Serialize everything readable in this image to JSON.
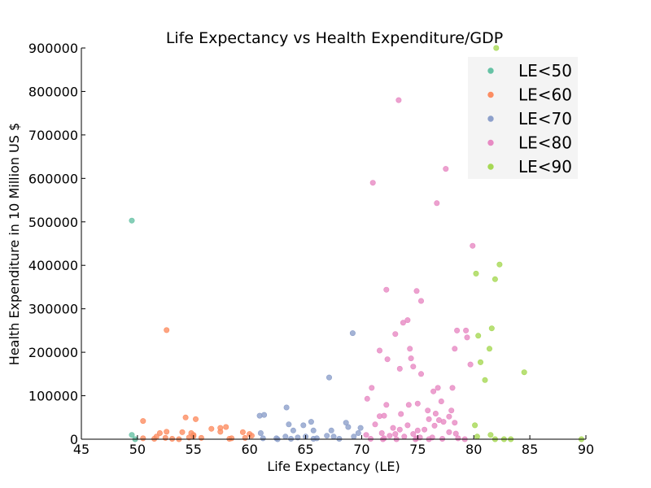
{
  "chart_data": {
    "type": "scatter",
    "title": "Life Expectancy vs Health Expenditure/GDP",
    "xlabel": "Life Expectancy (LE)",
    "ylabel": "Health Expenditure in 10 Million US $",
    "xlim": [
      45,
      90
    ],
    "ylim": [
      0,
      900000
    ],
    "xticks": [
      "45",
      "50",
      "55",
      "60",
      "65",
      "70",
      "75",
      "80",
      "85",
      "90"
    ],
    "yticks": [
      "0",
      "100000",
      "200000",
      "300000",
      "400000",
      "500000",
      "600000",
      "700000",
      "800000",
      "900000"
    ],
    "grid": false,
    "legend_position": "top-right",
    "series": [
      {
        "name": "LE<50",
        "color": "#66c2a5",
        "points": [
          [
            49.5,
            503000
          ],
          [
            49.5,
            10000
          ],
          [
            49.8,
            0
          ]
        ]
      },
      {
        "name": "LE<60",
        "color": "#fc8d62",
        "points": [
          [
            52.6,
            251000
          ],
          [
            50.5,
            42000
          ],
          [
            54.3,
            50000
          ],
          [
            55.2,
            46000
          ],
          [
            56.6,
            24000
          ],
          [
            57.4,
            26000
          ],
          [
            57.9,
            28000
          ],
          [
            59.4,
            16000
          ],
          [
            60.0,
            12000
          ],
          [
            52.0,
            14000
          ],
          [
            52.6,
            17000
          ],
          [
            54.0,
            16000
          ],
          [
            54.8,
            14000
          ],
          [
            55.0,
            10000
          ],
          [
            51.7,
            6000
          ],
          [
            52.5,
            3000
          ],
          [
            53.1,
            1000
          ],
          [
            54.6,
            4000
          ],
          [
            55.7,
            3000
          ],
          [
            57.4,
            17000
          ],
          [
            58.4,
            2000
          ],
          [
            58.2,
            1000
          ],
          [
            59.6,
            3000
          ],
          [
            60.2,
            8000
          ],
          [
            50.5,
            2000
          ],
          [
            51.5,
            1000
          ],
          [
            55.0,
            7000
          ],
          [
            53.7,
            0
          ]
        ]
      },
      {
        "name": "LE<70",
        "color": "#8da0cb",
        "points": [
          [
            69.2,
            244000
          ],
          [
            67.1,
            142000
          ],
          [
            63.3,
            73000
          ],
          [
            60.9,
            54000
          ],
          [
            61.3,
            56000
          ],
          [
            65.5,
            40000
          ],
          [
            68.6,
            38000
          ],
          [
            63.5,
            34000
          ],
          [
            64.8,
            32000
          ],
          [
            69.9,
            26000
          ],
          [
            68.8,
            28000
          ],
          [
            67.3,
            20000
          ],
          [
            63.9,
            20000
          ],
          [
            65.7,
            20000
          ],
          [
            61.0,
            14000
          ],
          [
            66.9,
            8000
          ],
          [
            67.5,
            6000
          ],
          [
            63.2,
            6000
          ],
          [
            64.3,
            4000
          ],
          [
            62.4,
            2000
          ],
          [
            65.0,
            6000
          ],
          [
            66.0,
            2000
          ],
          [
            69.3,
            6000
          ],
          [
            61.2,
            2000
          ],
          [
            63.7,
            1000
          ],
          [
            68.0,
            1000
          ],
          [
            69.7,
            14000
          ],
          [
            65.7,
            1000
          ],
          [
            62.5,
            0
          ]
        ]
      },
      {
        "name": "LE<80",
        "color": "#e78ac3",
        "points": [
          [
            73.3,
            780000
          ],
          [
            77.5,
            622000
          ],
          [
            71.0,
            590000
          ],
          [
            76.7,
            543000
          ],
          [
            79.9,
            445000
          ],
          [
            72.2,
            344000
          ],
          [
            74.9,
            341000
          ],
          [
            75.3,
            318000
          ],
          [
            73.7,
            268000
          ],
          [
            74.1,
            274000
          ],
          [
            73.0,
            242000
          ],
          [
            79.3,
            250000
          ],
          [
            78.5,
            250000
          ],
          [
            79.4,
            234000
          ],
          [
            74.3,
            208000
          ],
          [
            78.3,
            208000
          ],
          [
            71.6,
            204000
          ],
          [
            72.3,
            184000
          ],
          [
            74.4,
            186000
          ],
          [
            79.7,
            172000
          ],
          [
            74.6,
            167000
          ],
          [
            73.4,
            162000
          ],
          [
            75.3,
            150000
          ],
          [
            70.9,
            118000
          ],
          [
            76.8,
            118000
          ],
          [
            78.1,
            118000
          ],
          [
            76.4,
            110000
          ],
          [
            70.5,
            93000
          ],
          [
            77.1,
            87000
          ],
          [
            75.0,
            82000
          ],
          [
            72.2,
            79000
          ],
          [
            74.2,
            79000
          ],
          [
            75.9,
            66000
          ],
          [
            78.0,
            66000
          ],
          [
            72.0,
            54000
          ],
          [
            73.5,
            58000
          ],
          [
            76.6,
            59000
          ],
          [
            71.6,
            53000
          ],
          [
            77.8,
            52000
          ],
          [
            76.0,
            46000
          ],
          [
            76.9,
            44000
          ],
          [
            77.3,
            40000
          ],
          [
            78.3,
            38000
          ],
          [
            71.2,
            34000
          ],
          [
            74.1,
            32000
          ],
          [
            76.5,
            31000
          ],
          [
            72.8,
            26000
          ],
          [
            73.4,
            22000
          ],
          [
            75.6,
            22000
          ],
          [
            75.0,
            20000
          ],
          [
            71.8,
            14000
          ],
          [
            70.4,
            10000
          ],
          [
            73.0,
            12000
          ],
          [
            74.6,
            12000
          ],
          [
            77.8,
            16000
          ],
          [
            78.4,
            13000
          ],
          [
            72.5,
            8000
          ],
          [
            73.8,
            6000
          ],
          [
            75.2,
            4000
          ],
          [
            76.3,
            4000
          ],
          [
            72.0,
            2000
          ],
          [
            74.9,
            2000
          ],
          [
            77.2,
            1000
          ],
          [
            70.8,
            1000
          ],
          [
            71.9,
            0
          ],
          [
            73.1,
            0
          ],
          [
            74.8,
            0
          ],
          [
            76.0,
            0
          ],
          [
            78.6,
            2000
          ],
          [
            79.2,
            0
          ]
        ]
      },
      {
        "name": "LE<90",
        "color": "#a6d854",
        "points": [
          [
            82.0,
            900000
          ],
          [
            82.3,
            402000
          ],
          [
            80.2,
            381000
          ],
          [
            81.9,
            368000
          ],
          [
            81.6,
            255000
          ],
          [
            80.4,
            238000
          ],
          [
            81.4,
            208000
          ],
          [
            80.6,
            177000
          ],
          [
            84.5,
            154000
          ],
          [
            81.0,
            136000
          ],
          [
            80.1,
            32000
          ],
          [
            81.5,
            10000
          ],
          [
            80.3,
            6000
          ],
          [
            81.9,
            0
          ],
          [
            82.7,
            0
          ],
          [
            83.3,
            0
          ],
          [
            89.6,
            0
          ]
        ]
      }
    ]
  }
}
